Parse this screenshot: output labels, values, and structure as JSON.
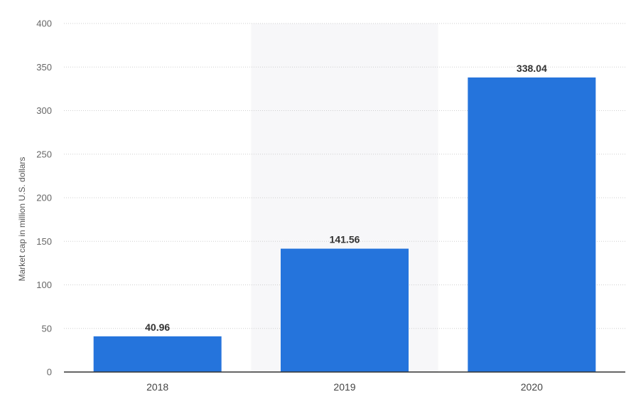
{
  "chart_data": {
    "type": "bar",
    "title": "",
    "xlabel": "",
    "ylabel": "Market cap in million U.S. dollars",
    "categories": [
      "2018",
      "2019",
      "2020"
    ],
    "values": [
      40.96,
      141.56,
      338.04
    ],
    "data_labels": [
      "40.96",
      "141.56",
      "338.04"
    ],
    "ylim": [
      0,
      400
    ],
    "yticks": [
      0,
      50,
      100,
      150,
      200,
      250,
      300,
      350,
      400
    ],
    "ytick_labels": [
      "0",
      "50",
      "100",
      "150",
      "200",
      "250",
      "300",
      "350",
      "400"
    ],
    "highlighted_category": "2019",
    "grid": true,
    "legend": "none",
    "colors": {
      "bar": "#2574dc",
      "highlight_band": "#f7f7f9",
      "gridline": "#cfcfcf",
      "baseline": "#333333"
    }
  }
}
